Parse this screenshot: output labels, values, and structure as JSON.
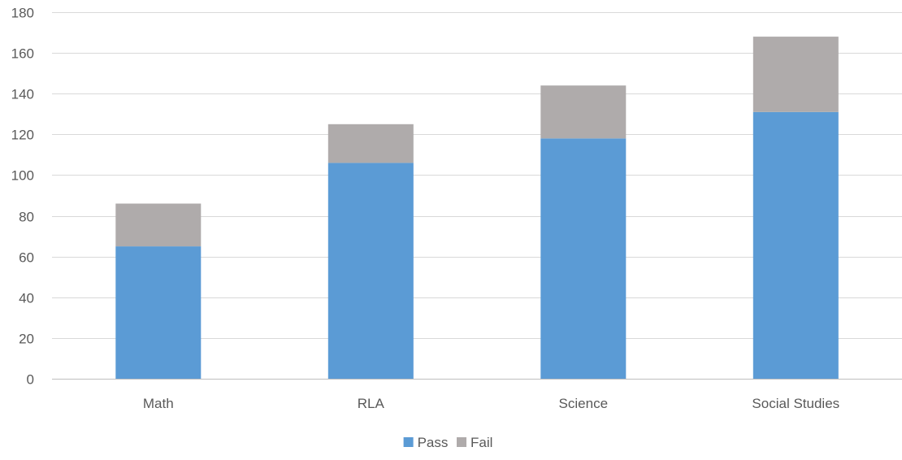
{
  "chart_data": {
    "type": "bar",
    "stacked": true,
    "title": "",
    "xlabel": "",
    "ylabel": "",
    "categories": [
      "Math",
      "RLA",
      "Science",
      "Social Studies"
    ],
    "series": [
      {
        "name": "Pass",
        "color": "#5b9bd5",
        "values": [
          65,
          106,
          118,
          131
        ]
      },
      {
        "name": "Fail",
        "color": "#afabab",
        "values": [
          21,
          19,
          26,
          37
        ]
      }
    ],
    "ylim": [
      0,
      180
    ],
    "yticks": [
      0,
      20,
      40,
      60,
      80,
      100,
      120,
      140,
      160,
      180
    ],
    "grid": true,
    "legend_position": "bottom"
  }
}
